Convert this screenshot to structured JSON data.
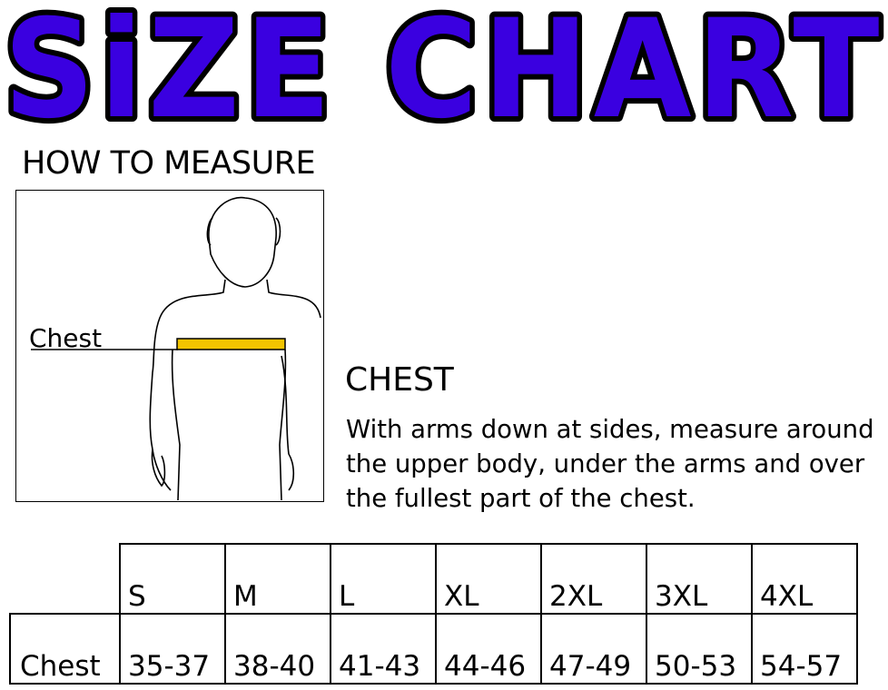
{
  "title": "SiZE CHART",
  "title_color": "#3a00e0",
  "how_to_measure": "HOW TO MEASURE",
  "figure": {
    "chest_label": "Chest",
    "tape_color": "#f2c400"
  },
  "section": {
    "title": "CHEST",
    "text": "With arms down at sides, measure around the upper body, under the arms and over the fullest part of the chest."
  },
  "table": {
    "sizes": [
      "S",
      "M",
      "L",
      "XL",
      "2XL",
      "3XL",
      "4XL"
    ],
    "rows": [
      {
        "label": "Chest",
        "values": [
          "35-37",
          "38-40",
          "41-43",
          "44-46",
          "47-49",
          "50-53",
          "54-57"
        ]
      }
    ]
  }
}
